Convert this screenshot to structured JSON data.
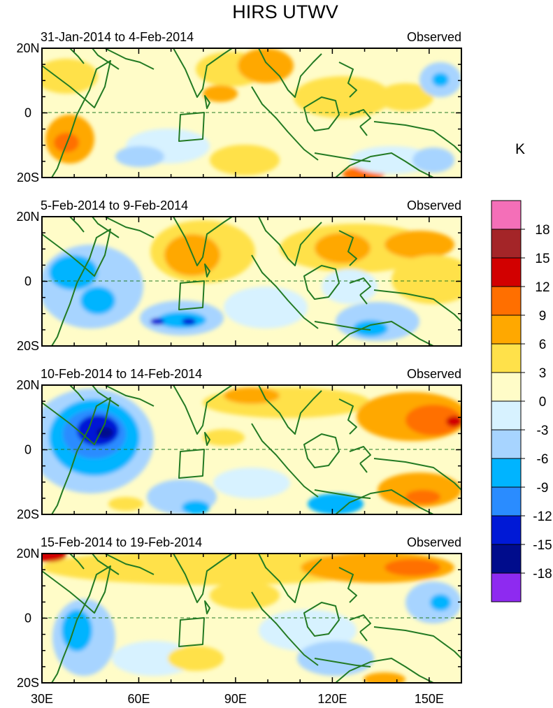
{
  "figure": {
    "title": "HIRS UTWV",
    "units_label": "K"
  },
  "panels": [
    {
      "date_range": "31-Jan-2014 to 4-Feb-2014",
      "tag": "Observed"
    },
    {
      "date_range": "5-Feb-2014 to 9-Feb-2014",
      "tag": "Observed"
    },
    {
      "date_range": "10-Feb-2014 to 14-Feb-2014",
      "tag": "Observed"
    },
    {
      "date_range": "15-Feb-2014 to 19-Feb-2014",
      "tag": "Observed"
    }
  ],
  "axes": {
    "lat_labels": [
      "20N",
      "0",
      "20S"
    ],
    "lon_labels": [
      "30E",
      "60E",
      "90E",
      "120E",
      "150E"
    ]
  },
  "colorbar": {
    "colors": [
      "#f46fb8",
      "#a42528",
      "#d20000",
      "#ff6f00",
      "#ffa800",
      "#ffe14a",
      "#fffcc8",
      "#d7f2ff",
      "#a7d4ff",
      "#00b4ff",
      "#2a8cff",
      "#0019d6",
      "#000c8c",
      "#8e2af0"
    ],
    "labels": [
      "18",
      "15",
      "12",
      "9",
      "6",
      "3",
      "0",
      "-3",
      "-6",
      "-9",
      "-12",
      "-15",
      "-18"
    ]
  }
}
